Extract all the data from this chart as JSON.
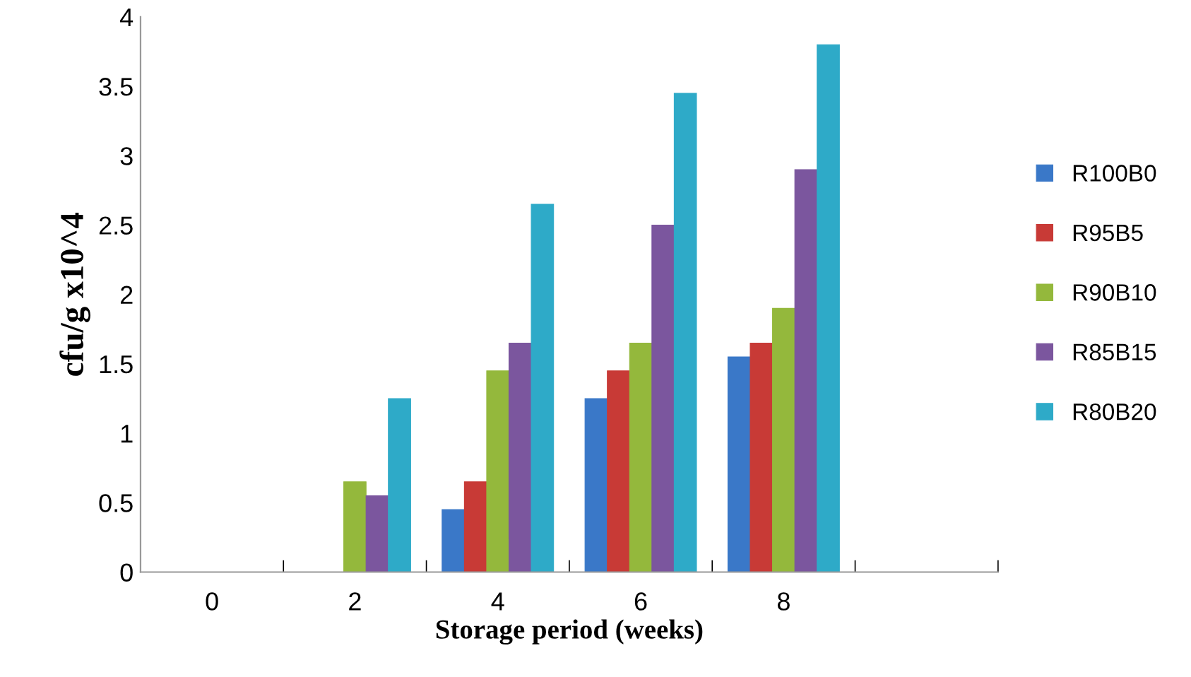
{
  "chart_data": {
    "type": "bar",
    "xlabel": "Storage period (weeks)",
    "ylabel": "cfu/g x10^4",
    "categories": [
      "0",
      "2",
      "4",
      "6",
      "8",
      null
    ],
    "series": [
      {
        "name": "R100B0",
        "color": "#3a78c8",
        "values": [
          0,
          0,
          0.45,
          1.25,
          1.55,
          null
        ]
      },
      {
        "name": "R95B5",
        "color": "#c83a36",
        "values": [
          0,
          0,
          0.65,
          1.45,
          1.65,
          null
        ]
      },
      {
        "name": "R90B10",
        "color": "#94b83c",
        "values": [
          0,
          0.65,
          1.45,
          1.65,
          1.9,
          null
        ]
      },
      {
        "name": "R85B15",
        "color": "#7b569e",
        "values": [
          0,
          0.55,
          1.65,
          2.5,
          2.9,
          null
        ]
      },
      {
        "name": "R80B20",
        "color": "#2eaac8",
        "values": [
          0,
          1.25,
          2.65,
          3.45,
          3.8,
          null
        ]
      }
    ],
    "ylim": [
      0,
      4
    ],
    "yticks": [
      0,
      0.5,
      1,
      1.5,
      2,
      2.5,
      3,
      3.5,
      4
    ],
    "grid": false,
    "legend": "right"
  }
}
